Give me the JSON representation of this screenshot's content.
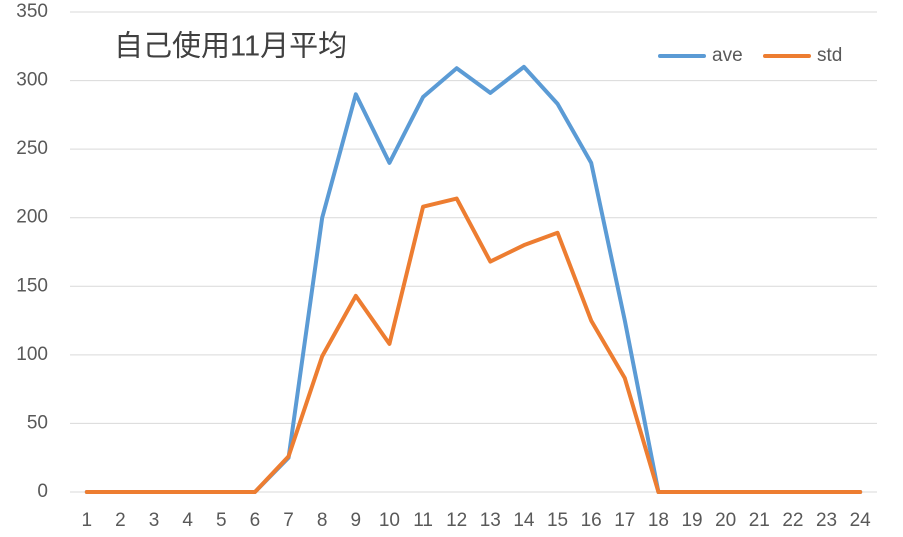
{
  "chart_data": {
    "type": "line",
    "title": "自己使用11月平均",
    "categories": [
      "1",
      "2",
      "3",
      "4",
      "5",
      "6",
      "7",
      "8",
      "9",
      "10",
      "11",
      "12",
      "13",
      "14",
      "15",
      "16",
      "17",
      "18",
      "19",
      "20",
      "21",
      "22",
      "23",
      "24"
    ],
    "series": [
      {
        "name": "ave",
        "color": "#5b9bd5",
        "values": [
          0,
          0,
          0,
          0,
          0,
          0,
          25,
          200,
          290,
          240,
          288,
          309,
          291,
          310,
          283,
          240,
          125,
          0,
          0,
          0,
          0,
          0,
          0,
          0
        ]
      },
      {
        "name": "std",
        "color": "#ed7d31",
        "values": [
          0,
          0,
          0,
          0,
          0,
          0,
          26,
          99,
          143,
          108,
          208,
          214,
          168,
          180,
          189,
          125,
          83,
          0,
          0,
          0,
          0,
          0,
          0,
          0
        ]
      }
    ],
    "ylim": [
      0,
      350
    ],
    "yticks": [
      0,
      50,
      100,
      150,
      200,
      250,
      300,
      350
    ],
    "grid": true,
    "legend": "top-right"
  }
}
